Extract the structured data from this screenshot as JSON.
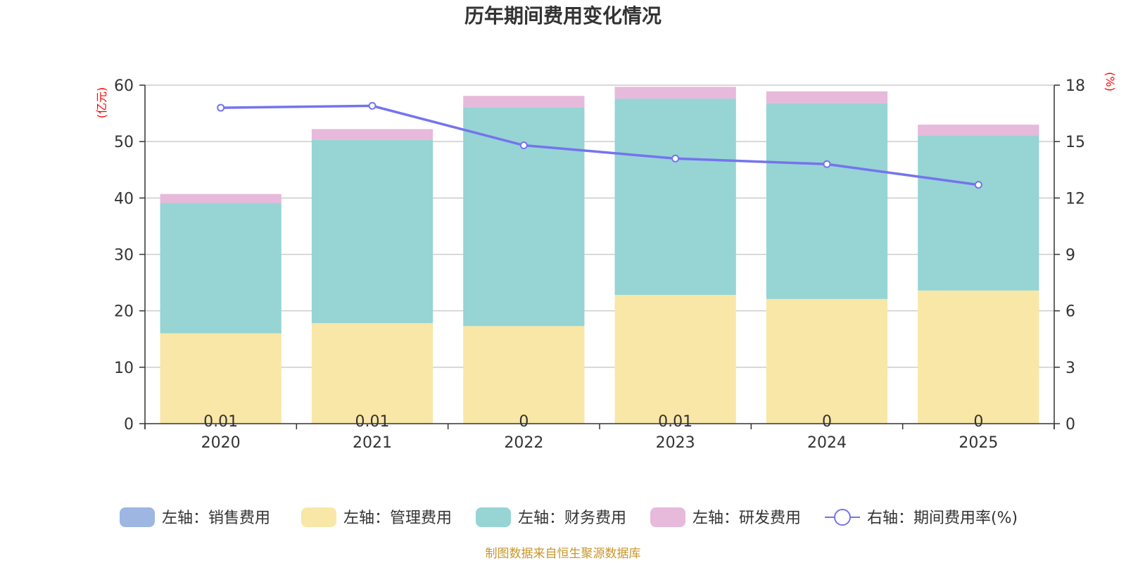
{
  "chart_data": {
    "type": "bar",
    "title": "历年期间费用变化情况",
    "categories": [
      "2020",
      "2021",
      "2022",
      "2023",
      "2024",
      "2025"
    ],
    "left_axis": {
      "unit": "(亿元)",
      "ylim": [
        0,
        60
      ],
      "ticks": [
        "0",
        "10",
        "20",
        "30",
        "40",
        "50",
        "60"
      ]
    },
    "right_axis": {
      "unit": "(%)",
      "ylim": [
        0,
        18
      ],
      "ticks": [
        "0",
        "3",
        "6",
        "9",
        "12",
        "15",
        "18"
      ]
    },
    "series": [
      {
        "name": "左轴：销售费用",
        "axis": "left",
        "kind": "bar",
        "color": "#9db6e2",
        "values": [
          0.01,
          0.01,
          0,
          0.01,
          0,
          0
        ],
        "labels": [
          "0.01",
          "0.01",
          "0",
          "0.01",
          "0",
          "0"
        ]
      },
      {
        "name": "左轴：管理费用",
        "axis": "left",
        "kind": "bar",
        "color": "#f8e7a7",
        "values": [
          16.0,
          17.8,
          17.3,
          22.8,
          22.1,
          23.6
        ]
      },
      {
        "name": "左轴：财务费用",
        "axis": "left",
        "kind": "bar",
        "color": "#97d4d4",
        "values": [
          23.1,
          32.5,
          38.8,
          34.8,
          34.7,
          27.5
        ]
      },
      {
        "name": "左轴：研发费用",
        "axis": "left",
        "kind": "bar",
        "color": "#e7b9db",
        "values": [
          1.6,
          1.9,
          2.0,
          2.1,
          2.1,
          1.9
        ]
      },
      {
        "name": "右轴：期间费用率(%)",
        "axis": "right",
        "kind": "line",
        "color": "#7474ee",
        "values": [
          16.8,
          16.9,
          14.8,
          14.1,
          13.8,
          12.7
        ]
      }
    ]
  },
  "footer": {
    "source": "制图数据来自恒生聚源数据库"
  }
}
